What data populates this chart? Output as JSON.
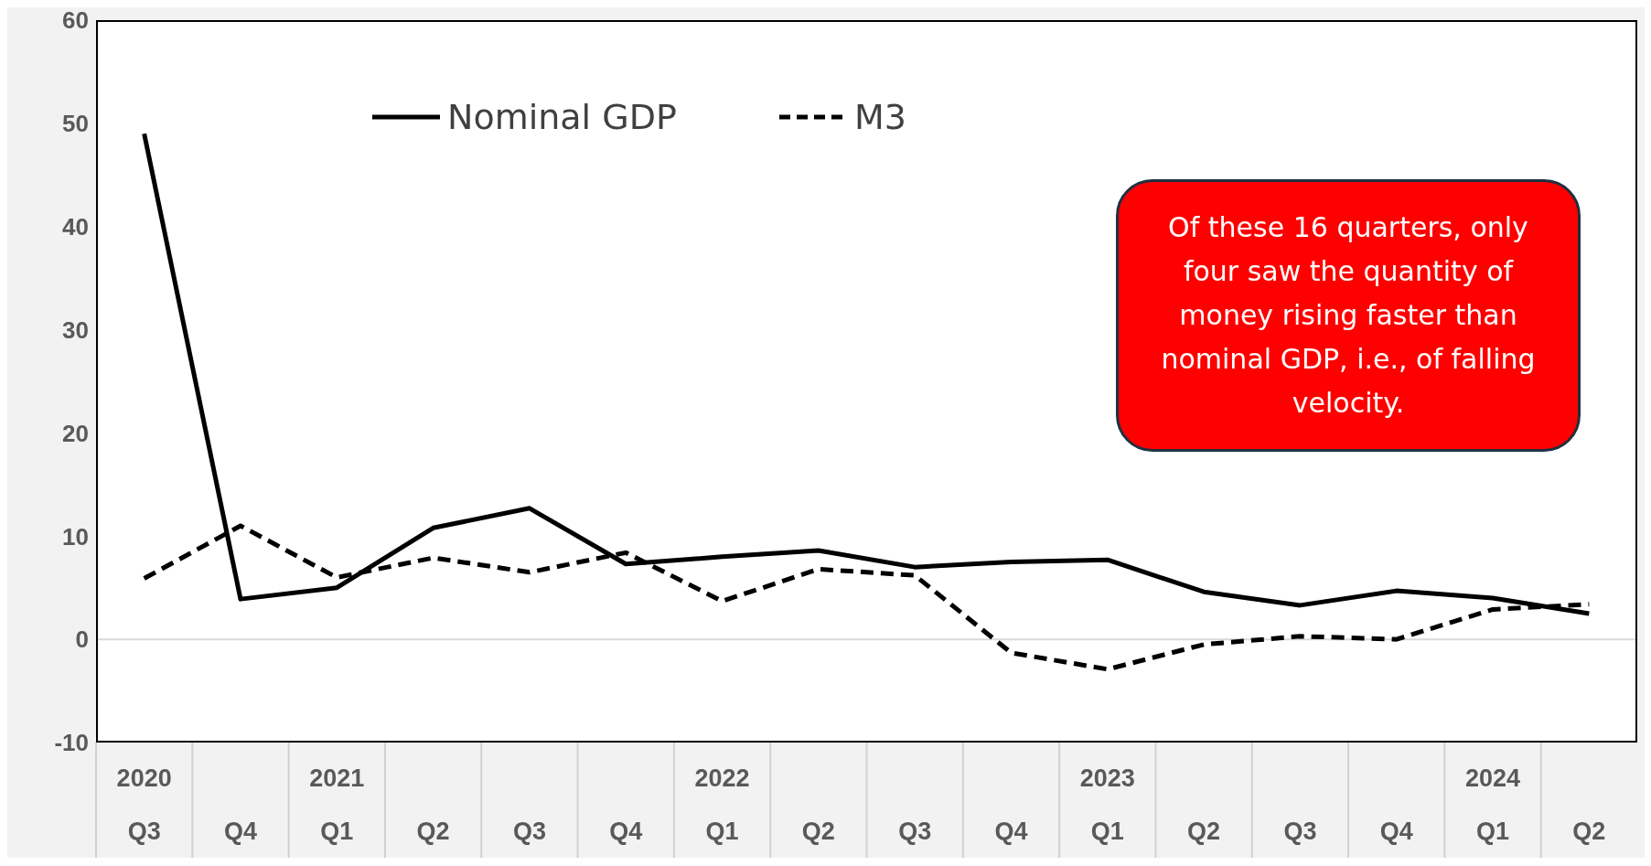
{
  "chart_data": {
    "type": "line",
    "categories": [
      "2020\nQ3",
      "Q4",
      "2021\nQ1",
      "Q2",
      "Q3",
      "Q4",
      "2022\nQ1",
      "Q2",
      "Q3",
      "Q4",
      "2023\nQ1",
      "Q2",
      "Q3",
      "Q4",
      "2024\nQ1",
      "Q2"
    ],
    "series": [
      {
        "name": "Nominal GDP",
        "color": "#000000",
        "line_style": "solid",
        "values": [
          49,
          3.9,
          5.0,
          10.8,
          12.7,
          7.3,
          8.0,
          8.6,
          7.0,
          7.5,
          7.7,
          4.6,
          3.3,
          4.7,
          4.0,
          2.5
        ]
      },
      {
        "name": "M3",
        "color": "#000000",
        "line_style": "dashed",
        "values": [
          5.9,
          11.0,
          6.0,
          7.9,
          6.5,
          8.4,
          3.7,
          6.8,
          6.2,
          -1.3,
          -2.9,
          -0.5,
          0.3,
          0.0,
          2.9,
          3.4
        ]
      }
    ],
    "ylim": [
      -10,
      60
    ],
    "yticks": [
      -10,
      0,
      10,
      20,
      30,
      40,
      50,
      60
    ],
    "ref_lines": [
      {
        "axis": "y",
        "value": 0,
        "color": "#d9d9d9"
      }
    ],
    "legend": "top",
    "marker": "none",
    "annotations": [
      "Of these 16 quarters, only four saw the quantity of money rising faster than nominal GDP, i.e., of falling velocity."
    ]
  }
}
